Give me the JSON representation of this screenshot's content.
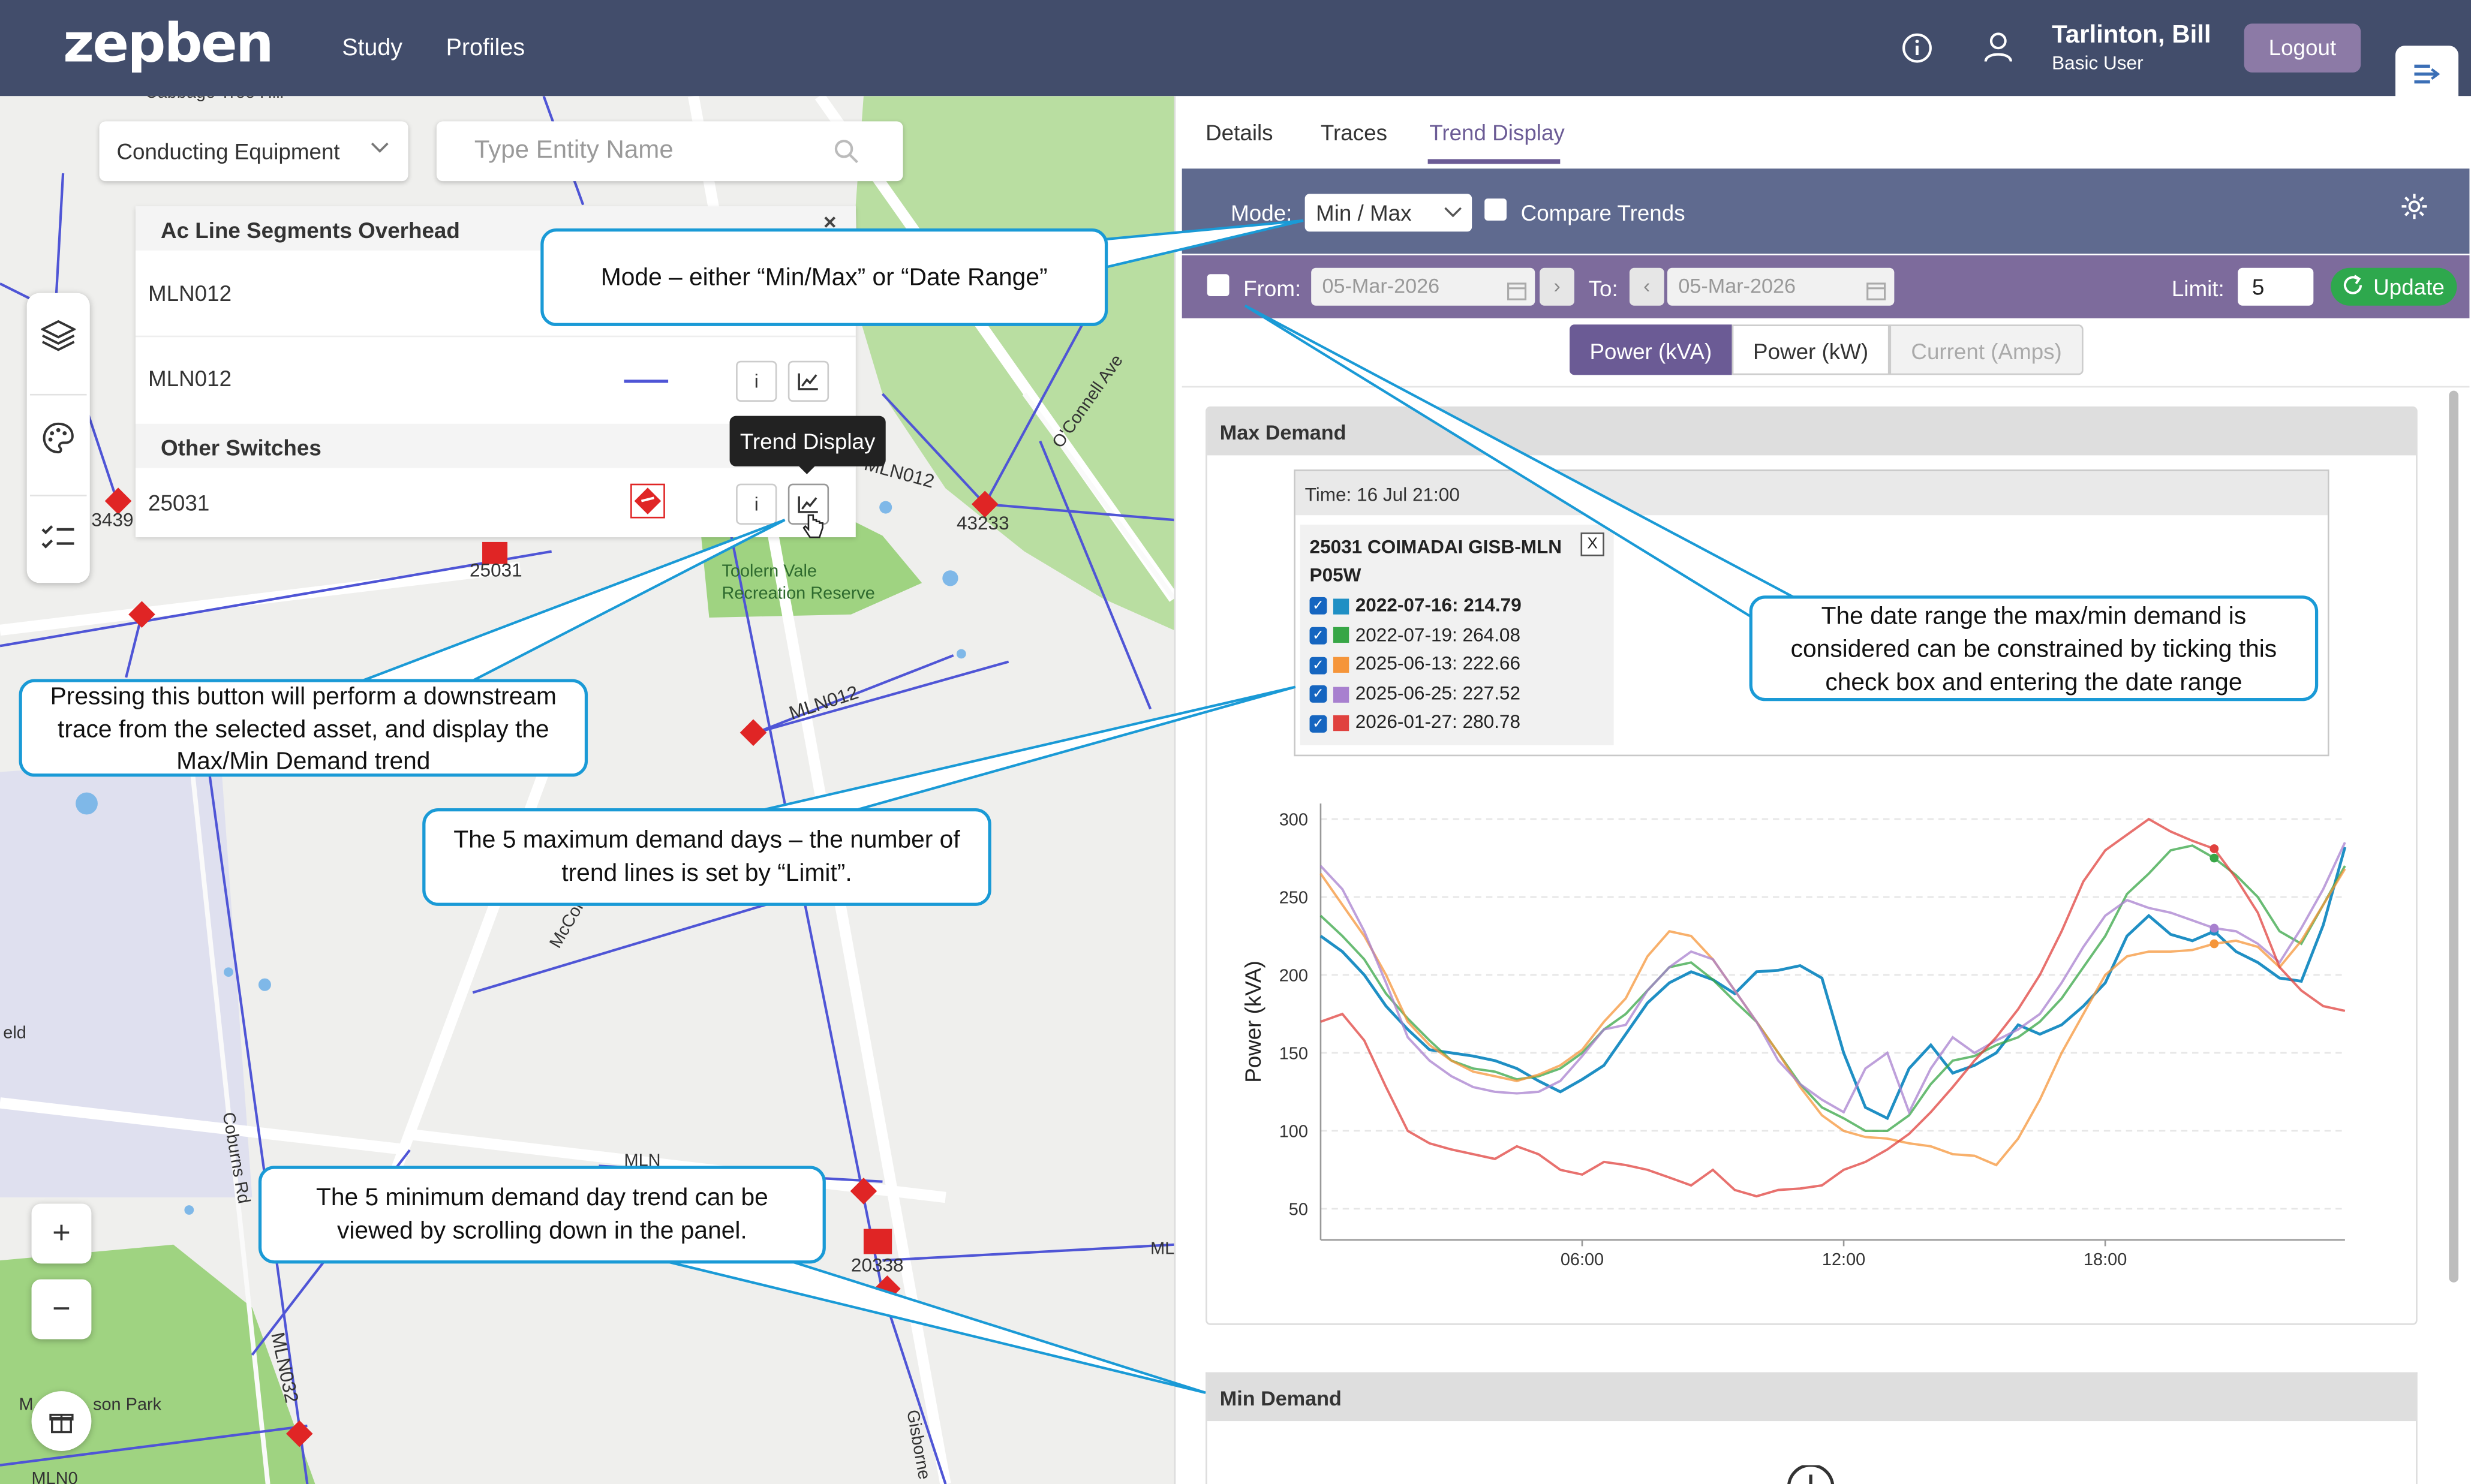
{
  "header": {
    "logo": "zepben",
    "nav": [
      "Study",
      "Profiles"
    ],
    "user_name": "Tarlinton, Bill",
    "user_role": "Basic User",
    "logout": "Logout",
    "info_icon": "info-circle-icon",
    "user_icon": "user-icon",
    "collapse_icon": "panel-collapse-icon"
  },
  "map": {
    "filter_select": "Conducting Equipment",
    "search_placeholder": "Type Entity Name",
    "groups": [
      {
        "title": "Ac Line Segments Overhead",
        "items": [
          "MLN012",
          "MLN012"
        ]
      },
      {
        "title": "Other Switches",
        "items": [
          "25031"
        ]
      }
    ],
    "tooltip": "Trend Display",
    "labels": {
      "l1": "Toolern Vale",
      "l2": "Recreation Reserve",
      "l3": "43233",
      "l4": "25031",
      "l5": "3439",
      "l6": "MLN012",
      "l7": "MLN012",
      "l8": "MLN032",
      "l9": "20338",
      "l10": "O'Connell Ave",
      "l11": "McCor",
      "l12": "Coburns Rd",
      "l13": "eld",
      "l14": "M",
      "l15": "son Park",
      "l16": "Gisborne",
      "l17": "MLN",
      "l18": "ML",
      "l19": "Cabbage Tree Hill",
      "l20": "338",
      "l21": "MLN0"
    },
    "zoom_in": "+",
    "zoom_out": "−",
    "item_info": "i"
  },
  "callouts": {
    "mode": "Mode – either “Min/Max” or “Date Range”",
    "trace": "Pressing this button will perform a downstream trace from the selected asset, and display the Max/Min Demand trend",
    "maxdays": "The 5 maximum demand days – the number of trend lines is set by “Limit”.",
    "mindays": "The 5 minimum demand day trend can be viewed by scrolling down in the panel.",
    "daterange": "The date range the max/min demand is considered can be constrained by ticking this check box and entering the date range"
  },
  "panel": {
    "tabs": [
      "Details",
      "Traces",
      "Trend Display"
    ],
    "active_tab": "Trend Display",
    "mode_label": "Mode:",
    "mode_value": "Min / Max",
    "compare_label": "Compare Trends",
    "from_label": "From:",
    "from_date": "05-Mar-2026",
    "to_label": "To:",
    "to_date": "05-Mar-2026",
    "limit_label": "Limit:",
    "limit_value": "5",
    "update_label": "Update",
    "measures": [
      "Power (kVA)",
      "Power (kW)",
      "Current (Amps)"
    ],
    "max_title": "Max Demand",
    "min_title": "Min Demand",
    "tip_time": "Time: 16 Jul 21:00",
    "tip_asset_line1": "25031 COIMADAI GISB-MLN",
    "tip_asset_line2": "P05W",
    "tip_close": "X",
    "accent": "#6b5b95"
  },
  "chart_data": {
    "type": "line",
    "ylabel": "Power (kVA)",
    "yticks": [
      50,
      100,
      150,
      200,
      250,
      300
    ],
    "ylim": [
      30,
      310
    ],
    "xticks": [
      "06:00",
      "12:00",
      "18:00"
    ],
    "xlim": [
      0,
      23.5
    ],
    "series": [
      {
        "name": "2022-07-16: 214.79",
        "color": "#1f8fc4",
        "values": [
          [
            0,
            225
          ],
          [
            0.5,
            215
          ],
          [
            1,
            200
          ],
          [
            1.5,
            180
          ],
          [
            2,
            165
          ],
          [
            2.5,
            152
          ],
          [
            3,
            150
          ],
          [
            3.5,
            148
          ],
          [
            4,
            145
          ],
          [
            4.5,
            140
          ],
          [
            5,
            132
          ],
          [
            5.5,
            125
          ],
          [
            6,
            133
          ],
          [
            6.5,
            142
          ],
          [
            7,
            162
          ],
          [
            7.5,
            182
          ],
          [
            8,
            195
          ],
          [
            8.5,
            202
          ],
          [
            9,
            197
          ],
          [
            9.5,
            188
          ],
          [
            10,
            202
          ],
          [
            10.5,
            203
          ],
          [
            11,
            206
          ],
          [
            11.5,
            198
          ],
          [
            12,
            150
          ],
          [
            12.5,
            115
          ],
          [
            13,
            108
          ],
          [
            13.5,
            140
          ],
          [
            14,
            155
          ],
          [
            14.5,
            137
          ],
          [
            15,
            142
          ],
          [
            15.5,
            150
          ],
          [
            16,
            168
          ],
          [
            16.5,
            162
          ],
          [
            17,
            168
          ],
          [
            17.5,
            180
          ],
          [
            18,
            195
          ],
          [
            18.5,
            225
          ],
          [
            19,
            238
          ],
          [
            19.5,
            226
          ],
          [
            20,
            222
          ],
          [
            20.5,
            228
          ],
          [
            21,
            215
          ],
          [
            21.5,
            208
          ],
          [
            22,
            198
          ],
          [
            22.5,
            196
          ],
          [
            23,
            232
          ],
          [
            23.5,
            282
          ]
        ]
      },
      {
        "name": "2022-07-19: 264.08",
        "color": "#37a646",
        "values": [
          [
            0,
            238
          ],
          [
            0.5,
            225
          ],
          [
            1,
            210
          ],
          [
            1.5,
            188
          ],
          [
            2,
            172
          ],
          [
            2.5,
            158
          ],
          [
            3,
            145
          ],
          [
            3.5,
            140
          ],
          [
            4,
            138
          ],
          [
            4.5,
            133
          ],
          [
            5,
            135
          ],
          [
            5.5,
            140
          ],
          [
            6,
            150
          ],
          [
            6.5,
            165
          ],
          [
            7,
            175
          ],
          [
            7.5,
            190
          ],
          [
            8,
            205
          ],
          [
            8.5,
            208
          ],
          [
            9,
            197
          ],
          [
            9.5,
            183
          ],
          [
            10,
            170
          ],
          [
            10.5,
            150
          ],
          [
            11,
            130
          ],
          [
            11.5,
            115
          ],
          [
            12,
            108
          ],
          [
            12.5,
            100
          ],
          [
            13,
            100
          ],
          [
            13.5,
            110
          ],
          [
            14,
            130
          ],
          [
            14.5,
            145
          ],
          [
            15,
            148
          ],
          [
            15.5,
            155
          ],
          [
            16,
            160
          ],
          [
            16.5,
            170
          ],
          [
            17,
            185
          ],
          [
            17.5,
            205
          ],
          [
            18,
            225
          ],
          [
            18.5,
            252
          ],
          [
            19,
            265
          ],
          [
            19.5,
            280
          ],
          [
            20,
            283
          ],
          [
            20.5,
            275
          ],
          [
            21,
            264
          ],
          [
            21.5,
            250
          ],
          [
            22,
            228
          ],
          [
            22.5,
            220
          ],
          [
            23,
            245
          ],
          [
            23.5,
            270
          ]
        ]
      },
      {
        "name": "2025-06-13: 222.66",
        "color": "#f5953a",
        "values": [
          [
            0,
            265
          ],
          [
            0.5,
            245
          ],
          [
            1,
            225
          ],
          [
            1.5,
            200
          ],
          [
            2,
            170
          ],
          [
            2.5,
            155
          ],
          [
            3,
            145
          ],
          [
            3.5,
            138
          ],
          [
            4,
            135
          ],
          [
            4.5,
            132
          ],
          [
            5,
            136
          ],
          [
            5.5,
            142
          ],
          [
            6,
            152
          ],
          [
            6.5,
            170
          ],
          [
            7,
            185
          ],
          [
            7.5,
            212
          ],
          [
            8,
            228
          ],
          [
            8.5,
            225
          ],
          [
            9,
            210
          ],
          [
            9.5,
            190
          ],
          [
            10,
            170
          ],
          [
            10.5,
            150
          ],
          [
            11,
            128
          ],
          [
            11.5,
            110
          ],
          [
            12,
            100
          ],
          [
            12.5,
            96
          ],
          [
            13,
            95
          ],
          [
            13.5,
            92
          ],
          [
            14,
            90
          ],
          [
            14.5,
            85
          ],
          [
            15,
            84
          ],
          [
            15.5,
            78
          ],
          [
            16,
            95
          ],
          [
            16.5,
            120
          ],
          [
            17,
            150
          ],
          [
            17.5,
            175
          ],
          [
            18,
            200
          ],
          [
            18.5,
            212
          ],
          [
            19,
            215
          ],
          [
            19.5,
            215
          ],
          [
            20,
            216
          ],
          [
            20.5,
            220
          ],
          [
            21,
            222
          ],
          [
            21.5,
            218
          ],
          [
            22,
            205
          ],
          [
            22.5,
            222
          ],
          [
            23,
            245
          ],
          [
            23.5,
            268
          ]
        ]
      },
      {
        "name": "2025-06-25: 227.52",
        "color": "#a880cf",
        "values": [
          [
            0,
            270
          ],
          [
            0.5,
            255
          ],
          [
            1,
            228
          ],
          [
            1.5,
            195
          ],
          [
            2,
            160
          ],
          [
            2.5,
            145
          ],
          [
            3,
            135
          ],
          [
            3.5,
            128
          ],
          [
            4,
            125
          ],
          [
            4.5,
            124
          ],
          [
            5,
            125
          ],
          [
            5.5,
            132
          ],
          [
            6,
            148
          ],
          [
            6.5,
            165
          ],
          [
            7,
            168
          ],
          [
            7.5,
            190
          ],
          [
            8,
            205
          ],
          [
            8.5,
            215
          ],
          [
            9,
            210
          ],
          [
            9.5,
            190
          ],
          [
            10,
            170
          ],
          [
            10.5,
            145
          ],
          [
            11,
            130
          ],
          [
            11.5,
            120
          ],
          [
            12,
            112
          ],
          [
            12.5,
            140
          ],
          [
            13,
            150
          ],
          [
            13.5,
            112
          ],
          [
            14,
            140
          ],
          [
            14.5,
            160
          ],
          [
            15,
            150
          ],
          [
            15.5,
            158
          ],
          [
            16,
            165
          ],
          [
            16.5,
            175
          ],
          [
            17,
            195
          ],
          [
            17.5,
            218
          ],
          [
            18,
            238
          ],
          [
            18.5,
            248
          ],
          [
            19,
            243
          ],
          [
            19.5,
            240
          ],
          [
            20,
            235
          ],
          [
            20.5,
            230
          ],
          [
            21,
            228
          ],
          [
            21.5,
            220
          ],
          [
            22,
            208
          ],
          [
            22.5,
            230
          ],
          [
            23,
            255
          ],
          [
            23.5,
            285
          ]
        ]
      },
      {
        "name": "2026-01-27: 280.78",
        "color": "#e0413e",
        "values": [
          [
            0,
            170
          ],
          [
            0.5,
            175
          ],
          [
            1,
            158
          ],
          [
            1.5,
            128
          ],
          [
            2,
            100
          ],
          [
            2.5,
            92
          ],
          [
            3,
            88
          ],
          [
            3.5,
            85
          ],
          [
            4,
            82
          ],
          [
            4.5,
            90
          ],
          [
            5,
            85
          ],
          [
            5.5,
            75
          ],
          [
            6,
            72
          ],
          [
            6.5,
            80
          ],
          [
            7,
            78
          ],
          [
            7.5,
            75
          ],
          [
            8,
            70
          ],
          [
            8.5,
            65
          ],
          [
            9,
            75
          ],
          [
            9.5,
            62
          ],
          [
            10,
            58
          ],
          [
            10.5,
            62
          ],
          [
            11,
            63
          ],
          [
            11.5,
            65
          ],
          [
            12,
            75
          ],
          [
            12.5,
            80
          ],
          [
            13,
            88
          ],
          [
            13.5,
            98
          ],
          [
            14,
            112
          ],
          [
            14.5,
            128
          ],
          [
            15,
            145
          ],
          [
            15.5,
            160
          ],
          [
            16,
            178
          ],
          [
            16.5,
            200
          ],
          [
            17,
            228
          ],
          [
            17.5,
            260
          ],
          [
            18,
            280
          ],
          [
            18.5,
            290
          ],
          [
            19,
            300
          ],
          [
            19.5,
            292
          ],
          [
            20,
            286
          ],
          [
            20.5,
            281
          ],
          [
            21,
            262
          ],
          [
            21.5,
            240
          ],
          [
            22,
            205
          ],
          [
            22.5,
            190
          ],
          [
            23,
            180
          ],
          [
            23.5,
            177
          ]
        ]
      }
    ],
    "markers_at": 20.5
  }
}
